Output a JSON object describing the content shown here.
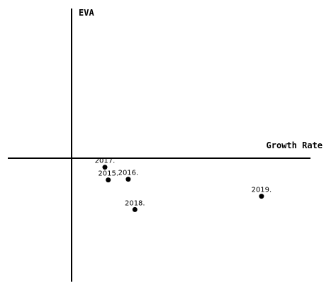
{
  "chart_data": {
    "type": "scatter",
    "title": "",
    "xlabel": "Growth Rate",
    "ylabel": "EVA",
    "grid": false,
    "legend": "none",
    "marker_color": "#000000",
    "axis_color": "#000000",
    "points": [
      {
        "label": "2015.",
        "x": 0.11,
        "y": -0.65
      },
      {
        "label": "2016.",
        "x": 0.17,
        "y": -0.63
      },
      {
        "label": "2017.",
        "x": 0.1,
        "y": -0.27
      },
      {
        "label": "2018.",
        "x": 0.19,
        "y": -1.54
      },
      {
        "label": "2019.",
        "x": 0.57,
        "y": -1.14
      }
    ]
  }
}
